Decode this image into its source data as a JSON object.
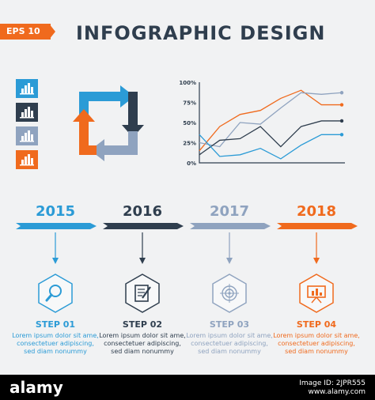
{
  "badge": "EPS 10",
  "title": "INFOGRAPHIC DESIGN",
  "colors": {
    "blue": "#2b9bd6",
    "navy": "#2f3e4e",
    "grey": "#8fa3bf",
    "orange": "#f06a1d"
  },
  "tiles": [
    {
      "icon": "bar-chart-icon",
      "color": "#2b9bd6"
    },
    {
      "icon": "bar-chart-icon",
      "color": "#2f3e4e"
    },
    {
      "icon": "bar-chart-icon",
      "color": "#8fa3bf"
    },
    {
      "icon": "bar-chart-icon",
      "color": "#f06a1d"
    }
  ],
  "cycle_icon": "square-cycle-arrows-icon",
  "line_chart": {
    "type": "line",
    "ytick_labels": [
      "100%",
      "75%",
      "50%",
      "25%",
      "0%"
    ],
    "ylim": [
      0,
      100
    ],
    "x": [
      0,
      1,
      2,
      3,
      4,
      5,
      6,
      7
    ],
    "series": [
      {
        "color": "#f06a1d",
        "values": [
          15,
          45,
          60,
          65,
          80,
          90,
          72,
          72
        ]
      },
      {
        "color": "#8fa3bf",
        "values": [
          25,
          20,
          50,
          48,
          68,
          87,
          85,
          87
        ]
      },
      {
        "color": "#2f3e4e",
        "values": [
          10,
          28,
          30,
          45,
          20,
          45,
          52,
          52
        ]
      },
      {
        "color": "#2b9bd6",
        "values": [
          35,
          8,
          10,
          18,
          5,
          22,
          35,
          35
        ]
      }
    ]
  },
  "timeline": [
    {
      "year": "2015",
      "color": "#2b9bd6",
      "step": "STEP 01",
      "icon": "magnifier-icon",
      "text": [
        "Lorem ipsum dolor sit ame,",
        "consectetuer adipiscing,",
        "sed diam nonummy"
      ]
    },
    {
      "year": "2016",
      "color": "#2f3e4e",
      "step": "STEP 02",
      "icon": "document-pen-icon",
      "text": [
        "Lorem ipsum dolor sit ame,",
        "consectetuer adipiscing,",
        "sed diam nonummy"
      ]
    },
    {
      "year": "2017",
      "color": "#8fa3bf",
      "step": "STEP 03",
      "icon": "target-icon",
      "text": [
        "Lorem ipsum dolor sit ame,",
        "consectetuer adipiscing,",
        "sed diam nonummy"
      ]
    },
    {
      "year": "2018",
      "color": "#f06a1d",
      "step": "STEP 04",
      "icon": "presentation-board-icon",
      "text": [
        "Lorem ipsum dolor sit ame,",
        "consectetuer adipiscing,",
        "sed diam nonummy"
      ]
    }
  ],
  "footer": {
    "logo": "alamy",
    "image_id_label": "Image ID: 2JPR555",
    "site": "www.alamy.com"
  }
}
